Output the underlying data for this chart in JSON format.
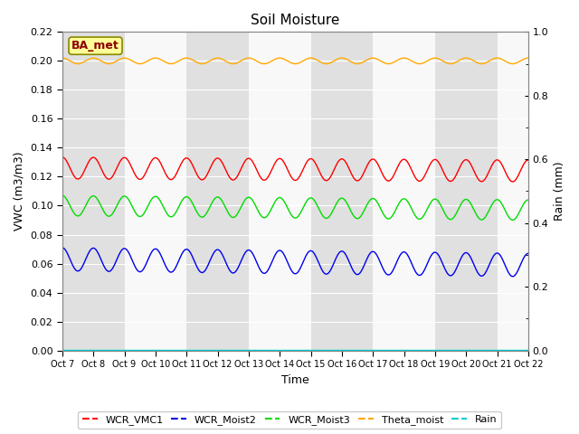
{
  "title": "Soil Moisture",
  "xlabel": "Time",
  "ylabel_left": "VWC (m3/m3)",
  "ylabel_right": "Rain (mm)",
  "ylim_left": [
    0.0,
    0.22
  ],
  "ylim_right": [
    0.0,
    1.0
  ],
  "yticks_left": [
    0.0,
    0.02,
    0.04,
    0.06,
    0.08,
    0.1,
    0.12,
    0.14,
    0.16,
    0.18,
    0.2,
    0.22
  ],
  "yticks_right": [
    0.0,
    0.2,
    0.4,
    0.6,
    0.8,
    1.0
  ],
  "n_points": 600,
  "series": {
    "WCR_VMC1": {
      "color": "#ff0000",
      "base": 0.126,
      "amplitude": 0.0075,
      "period_days": 1.0,
      "trend": -0.002,
      "phase": 1.57
    },
    "WCR_Moist2": {
      "color": "#0000ee",
      "base": 0.063,
      "amplitude": 0.008,
      "period_days": 1.0,
      "trend": -0.004,
      "phase": 1.57
    },
    "WCR_Moist3": {
      "color": "#00dd00",
      "base": 0.1,
      "amplitude": 0.007,
      "period_days": 1.0,
      "trend": -0.003,
      "phase": 1.57
    },
    "Theta_moist": {
      "color": "#ffaa00",
      "base": 0.2,
      "amplitude": 0.002,
      "period_days": 1.0,
      "trend": 0.0,
      "phase": 1.57
    },
    "Rain": {
      "color": "#00cccc",
      "base": 0.0005,
      "amplitude": 0.0,
      "period_days": 1.0,
      "trend": 0.0,
      "phase": 0.0
    }
  },
  "xtick_labels": [
    "Oct 7",
    "Oct 8",
    "Oct 9",
    "Oct 10",
    "Oct 11",
    "Oct 12",
    "Oct 13",
    "Oct 14",
    "Oct 15",
    "Oct 16",
    "Oct 17",
    "Oct 18",
    "Oct 19",
    "Oct 20",
    "Oct 21",
    "Oct 22"
  ],
  "station_label": "BA_met",
  "station_label_bg": "#ffff99",
  "station_label_border": "#888800",
  "background_band_color": "#e0e0e0",
  "background_white": "#f8f8f8",
  "legend_colors": {
    "WCR_VMC1": "#ff0000",
    "WCR_Moist2": "#0000ee",
    "WCR_Moist3": "#00dd00",
    "Theta_moist": "#ffaa00",
    "Rain": "#00cccc"
  }
}
